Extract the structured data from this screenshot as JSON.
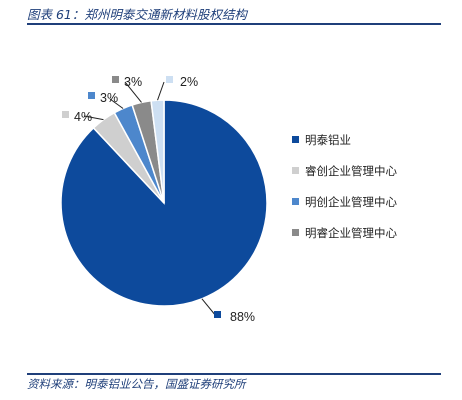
{
  "header": {
    "title": "图表 61：郑州明泰交通新材料股权结构"
  },
  "footer": {
    "source": "资料来源：明泰铝业公告，国盛证券研究所"
  },
  "chart_data": {
    "type": "pie",
    "categories": [
      "明泰铝业",
      "睿创企业管理中心",
      "明创企业管理中心",
      "明睿企业管理中心",
      ""
    ],
    "values": [
      88,
      4,
      3,
      3,
      2
    ],
    "data_labels": [
      "88%",
      "4%",
      "3%",
      "3%",
      "2%"
    ],
    "colors": [
      "#0d4a9c",
      "#cfcfcf",
      "#4d87cc",
      "#8a8a8a",
      "#cddff2"
    ],
    "start_angle_deg": 0,
    "direction": "clockwise",
    "legend": {
      "placement": "right",
      "entries": [
        "明泰铝业",
        "睿创企业管理中心",
        "明创企业管理中心",
        "明睿企业管理中心"
      ]
    }
  }
}
